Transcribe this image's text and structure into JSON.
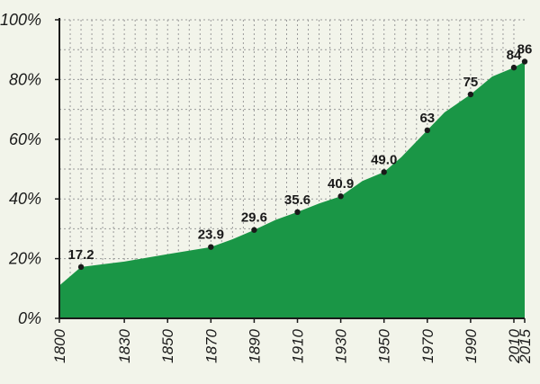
{
  "chart_data": {
    "type": "area",
    "title": "",
    "xlabel": "",
    "ylabel": "",
    "xlim": [
      1800,
      2015
    ],
    "ylim": [
      0,
      100
    ],
    "y_ticks": [
      {
        "value": 0,
        "label": "0%"
      },
      {
        "value": 20,
        "label": "20%"
      },
      {
        "value": 40,
        "label": "40%"
      },
      {
        "value": 60,
        "label": "60%"
      },
      {
        "value": 80,
        "label": "80%"
      },
      {
        "value": 100,
        "label": "100%"
      }
    ],
    "x_ticks": [
      {
        "value": 1800,
        "label": "1800"
      },
      {
        "value": 1830,
        "label": "1830"
      },
      {
        "value": 1850,
        "label": "1850"
      },
      {
        "value": 1870,
        "label": "1870"
      },
      {
        "value": 1890,
        "label": "1890"
      },
      {
        "value": 1910,
        "label": "1910"
      },
      {
        "value": 1930,
        "label": "1930"
      },
      {
        "value": 1950,
        "label": "1950"
      },
      {
        "value": 1970,
        "label": "1970"
      },
      {
        "value": 1990,
        "label": "1990"
      },
      {
        "value": 2010,
        "label": "2010"
      },
      {
        "value": 2015,
        "label": "2015"
      }
    ],
    "grid": true,
    "fill_color": "#1a9646",
    "area": [
      {
        "x": 1800,
        "y": 11
      },
      {
        "x": 1810,
        "y": 17.2
      },
      {
        "x": 1830,
        "y": 19
      },
      {
        "x": 1850,
        "y": 21.5
      },
      {
        "x": 1870,
        "y": 23.9
      },
      {
        "x": 1880,
        "y": 26.5
      },
      {
        "x": 1890,
        "y": 29.6
      },
      {
        "x": 1900,
        "y": 33
      },
      {
        "x": 1910,
        "y": 35.6
      },
      {
        "x": 1920,
        "y": 38.5
      },
      {
        "x": 1930,
        "y": 40.9
      },
      {
        "x": 1940,
        "y": 46
      },
      {
        "x": 1950,
        "y": 49.0
      },
      {
        "x": 1958,
        "y": 54
      },
      {
        "x": 1970,
        "y": 63
      },
      {
        "x": 1978,
        "y": 69
      },
      {
        "x": 1990,
        "y": 75
      },
      {
        "x": 2000,
        "y": 81
      },
      {
        "x": 2010,
        "y": 84
      },
      {
        "x": 2015,
        "y": 86
      }
    ],
    "points": [
      {
        "x": 1810,
        "y": 17.2,
        "label": "17.2"
      },
      {
        "x": 1870,
        "y": 23.9,
        "label": "23.9"
      },
      {
        "x": 1890,
        "y": 29.6,
        "label": "29.6"
      },
      {
        "x": 1910,
        "y": 35.6,
        "label": "35.6"
      },
      {
        "x": 1930,
        "y": 40.9,
        "label": "40.9"
      },
      {
        "x": 1950,
        "y": 49.0,
        "label": "49.0"
      },
      {
        "x": 1970,
        "y": 63,
        "label": "63"
      },
      {
        "x": 1990,
        "y": 75,
        "label": "75"
      },
      {
        "x": 2010,
        "y": 84,
        "label": "84"
      },
      {
        "x": 2015,
        "y": 86,
        "label": "86"
      }
    ]
  }
}
